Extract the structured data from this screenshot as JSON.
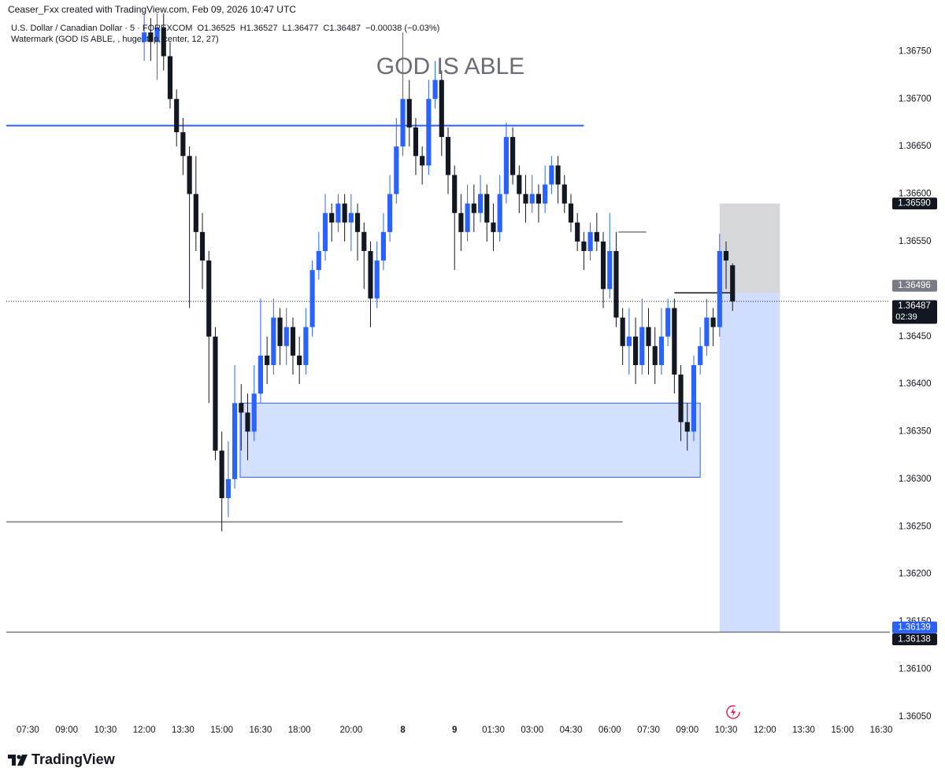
{
  "header": {
    "attribution": "Ceaser_Fxx created with TradingView.com, Feb 09, 2026 10:47 UTC",
    "symbol": "U.S. Dollar / Canadian Dollar · 5 · FOREXCOM",
    "ohlc": [
      "O1.36525",
      "H1.36527",
      "L1.36477",
      "C1.36487",
      "−0.00038 (−0.03%)"
    ],
    "indicator": "Watermark (GOD IS ABLE, , huge, top, center, 12, 27)"
  },
  "watermark": "GOD IS ABLE",
  "footer": {
    "brand": "TradingView"
  },
  "chart_data": {
    "type": "candlestick",
    "up_color": "#2962ff",
    "down_color": "#131722",
    "x": [
      54,
      57,
      60,
      63,
      66,
      69,
      72,
      75,
      78,
      81,
      84,
      87,
      90,
      93,
      96,
      99,
      102,
      105,
      108,
      111,
      114,
      117,
      120,
      123,
      126,
      129,
      132,
      135,
      138,
      141,
      144,
      147,
      150,
      153,
      156,
      159,
      162,
      165,
      168,
      171,
      174,
      177,
      180,
      183,
      186,
      189,
      192,
      195,
      198,
      201,
      204,
      207,
      210,
      213,
      216,
      219,
      222,
      225,
      228,
      231,
      234,
      237,
      240,
      243,
      246,
      249,
      252,
      255,
      258,
      261,
      264,
      267,
      270,
      273,
      276,
      279,
      282,
      285,
      288,
      291,
      294,
      297,
      300,
      303,
      306,
      309,
      312,
      315,
      318,
      321,
      324,
      327
    ],
    "open": [
      1.3676,
      1.3677,
      1.3676,
      1.36775,
      1.36745,
      1.367,
      1.36665,
      1.3664,
      1.366,
      1.3656,
      1.3653,
      1.3645,
      1.3633,
      1.3628,
      1.363,
      1.3638,
      1.3637,
      1.3635,
      1.3639,
      1.3643,
      1.3642,
      1.3647,
      1.3644,
      1.3646,
      1.3643,
      1.3642,
      1.3646,
      1.3652,
      1.3654,
      1.3658,
      1.3657,
      1.3659,
      1.3657,
      1.3658,
      1.3656,
      1.3654,
      1.3649,
      1.3653,
      1.3656,
      1.366,
      1.3665,
      1.367,
      1.3667,
      1.3664,
      1.3663,
      1.367,
      1.3672,
      1.3666,
      1.3662,
      1.3658,
      1.3656,
      1.3659,
      1.3658,
      1.366,
      1.3657,
      1.3656,
      1.366,
      1.3666,
      1.3662,
      1.366,
      1.3659,
      1.366,
      1.3659,
      1.3661,
      1.3663,
      1.3661,
      1.3659,
      1.3657,
      1.3655,
      1.3654,
      1.3656,
      1.3655,
      1.365,
      1.3654,
      1.3647,
      1.3644,
      1.3645,
      1.3642,
      1.3646,
      1.3644,
      1.3642,
      1.3645,
      1.3648,
      1.3641,
      1.3636,
      1.3635,
      1.3642,
      1.3644,
      1.3647,
      1.3646,
      1.3654,
      1.36525
    ],
    "high": [
      1.3679,
      1.36785,
      1.3679,
      1.3679,
      1.3676,
      1.3671,
      1.3668,
      1.3665,
      1.3664,
      1.3658,
      1.3654,
      1.3646,
      1.3635,
      1.3634,
      1.3642,
      1.364,
      1.3639,
      1.3642,
      1.3649,
      1.3645,
      1.3649,
      1.3648,
      1.3648,
      1.3647,
      1.3645,
      1.3648,
      1.3653,
      1.3656,
      1.366,
      1.3659,
      1.366,
      1.366,
      1.366,
      1.3659,
      1.3657,
      1.3655,
      1.3655,
      1.3658,
      1.3662,
      1.3668,
      1.3677,
      1.3672,
      1.3668,
      1.3665,
      1.3672,
      1.3674,
      1.3673,
      1.3667,
      1.3663,
      1.366,
      1.3661,
      1.3661,
      1.3662,
      1.3661,
      1.3659,
      1.3662,
      1.36675,
      1.3667,
      1.3663,
      1.3662,
      1.3662,
      1.3661,
      1.3663,
      1.3664,
      1.3664,
      1.3662,
      1.366,
      1.3658,
      1.3656,
      1.3657,
      1.3658,
      1.3656,
      1.3658,
      1.3656,
      1.3648,
      1.3648,
      1.3647,
      1.3649,
      1.3648,
      1.3646,
      1.3648,
      1.3649,
      1.3649,
      1.3642,
      1.3638,
      1.3643,
      1.3646,
      1.3649,
      1.3648,
      1.36558,
      1.3655,
      1.36527
    ],
    "low": [
      1.3674,
      1.3674,
      1.3672,
      1.3673,
      1.3669,
      1.3665,
      1.3662,
      1.3648,
      1.3654,
      1.365,
      1.3638,
      1.3632,
      1.36245,
      1.3626,
      1.3629,
      1.3633,
      1.3632,
      1.3634,
      1.3638,
      1.364,
      1.3641,
      1.3642,
      1.3642,
      1.3641,
      1.364,
      1.3641,
      1.3645,
      1.3651,
      1.3653,
      1.3655,
      1.3656,
      1.3655,
      1.3654,
      1.3653,
      1.365,
      1.3646,
      1.3648,
      1.3652,
      1.3655,
      1.3659,
      1.3664,
      1.3665,
      1.3662,
      1.3661,
      1.3662,
      1.3669,
      1.3664,
      1.366,
      1.3652,
      1.3654,
      1.3655,
      1.3656,
      1.3657,
      1.3655,
      1.3654,
      1.3655,
      1.3659,
      1.3661,
      1.3658,
      1.3657,
      1.3658,
      1.3657,
      1.3658,
      1.366,
      1.3659,
      1.3658,
      1.3656,
      1.3654,
      1.3652,
      1.3653,
      1.3654,
      1.3648,
      1.3649,
      1.3646,
      1.3642,
      1.3641,
      1.364,
      1.3641,
      1.3641,
      1.364,
      1.3641,
      1.3644,
      1.3639,
      1.3634,
      1.3633,
      1.3634,
      1.3641,
      1.3643,
      1.3644,
      1.3645,
      1.365,
      1.36477
    ],
    "close": [
      1.3677,
      1.3676,
      1.36775,
      1.36745,
      1.367,
      1.36665,
      1.3664,
      1.366,
      1.3656,
      1.3653,
      1.3645,
      1.3633,
      1.3628,
      1.363,
      1.3638,
      1.3637,
      1.3635,
      1.3639,
      1.3643,
      1.3642,
      1.3647,
      1.3644,
      1.3646,
      1.3643,
      1.3642,
      1.3646,
      1.3652,
      1.3654,
      1.3658,
      1.3657,
      1.3659,
      1.3657,
      1.3658,
      1.3656,
      1.3654,
      1.3649,
      1.3653,
      1.3656,
      1.366,
      1.3665,
      1.367,
      1.3667,
      1.3664,
      1.3663,
      1.367,
      1.3672,
      1.3666,
      1.3662,
      1.3658,
      1.3656,
      1.3659,
      1.3658,
      1.366,
      1.3657,
      1.3656,
      1.366,
      1.3666,
      1.3662,
      1.366,
      1.3659,
      1.366,
      1.3659,
      1.3661,
      1.3663,
      1.3661,
      1.3659,
      1.3657,
      1.3655,
      1.3654,
      1.3656,
      1.3655,
      1.365,
      1.3654,
      1.3647,
      1.3644,
      1.3645,
      1.3642,
      1.3646,
      1.3644,
      1.3642,
      1.3645,
      1.3648,
      1.3641,
      1.3636,
      1.3635,
      1.3642,
      1.3644,
      1.3647,
      1.3646,
      1.3654,
      1.3653,
      1.36487
    ],
    "xlim": [
      -10,
      400
    ],
    "xticks": [
      {
        "value": 0,
        "label": "07:30"
      },
      {
        "value": 18,
        "label": "09:00"
      },
      {
        "value": 36,
        "label": "10:30"
      },
      {
        "value": 54,
        "label": "12:00"
      },
      {
        "value": 72,
        "label": "13:30"
      },
      {
        "value": 90,
        "label": "15:00"
      },
      {
        "value": 108,
        "label": "16:30"
      },
      {
        "value": 126,
        "label": "18:00"
      },
      {
        "value": 150,
        "label": "20:00"
      },
      {
        "value": 174,
        "label": "8"
      },
      {
        "value": 198,
        "label": "9"
      },
      {
        "value": 216,
        "label": "01:30"
      },
      {
        "value": 234,
        "label": "03:00"
      },
      {
        "value": 252,
        "label": "04:30"
      },
      {
        "value": 270,
        "label": "06:00"
      },
      {
        "value": 288,
        "label": "07:30"
      },
      {
        "value": 306,
        "label": "09:00"
      },
      {
        "value": 324,
        "label": "10:30"
      },
      {
        "value": 342,
        "label": "12:00"
      },
      {
        "value": 360,
        "label": "13:30"
      },
      {
        "value": 378,
        "label": "15:00"
      },
      {
        "value": 396,
        "label": "16:30"
      }
    ],
    "ylim": [
      1.3603,
      1.368
    ],
    "yticks": [
      {
        "value": 1.3605,
        "label": "1.36050"
      },
      {
        "value": 1.361,
        "label": "1.36100"
      },
      {
        "value": 1.3615,
        "label": "1.36150"
      },
      {
        "value": 1.362,
        "label": "1.36200"
      },
      {
        "value": 1.3625,
        "label": "1.36250"
      },
      {
        "value": 1.363,
        "label": "1.36300"
      },
      {
        "value": 1.3635,
        "label": "1.36350"
      },
      {
        "value": 1.364,
        "label": "1.36400"
      },
      {
        "value": 1.3645,
        "label": "1.36450"
      },
      {
        "value": 1.365,
        "label": "1.36500"
      },
      {
        "value": 1.3655,
        "label": "1.36550"
      },
      {
        "value": 1.366,
        "label": "1.36600"
      },
      {
        "value": 1.3665,
        "label": "1.36650"
      },
      {
        "value": 1.367,
        "label": "1.36700"
      },
      {
        "value": 1.3675,
        "label": "1.36750"
      }
    ],
    "levels": [
      {
        "price": 1.36672,
        "x": [
          -10,
          258
        ],
        "color": "#2962ff"
      },
      {
        "price": 1.36255,
        "x": [
          -10,
          276
        ],
        "color": "#787b86"
      },
      {
        "price": 1.36139,
        "x": [
          -10,
          400
        ],
        "color": "#787b86"
      },
      {
        "price": 1.3656,
        "x": [
          274,
          287
        ],
        "color": "#787b86"
      },
      {
        "price": 1.36496,
        "x": [
          300,
          327
        ],
        "color": "#131722"
      }
    ],
    "zones": [
      {
        "low": 1.36302,
        "high": 1.3638,
        "x": [
          98.5,
          312
        ],
        "color": "#2962ff"
      }
    ],
    "position": {
      "stop": 1.3659,
      "entry": 1.36496,
      "target": 1.36139,
      "x": [
        321,
        349
      ],
      "stop_color": "#787b86",
      "target_color": "#2962ff"
    },
    "last_price": 1.36487,
    "price_tags": [
      {
        "value": 1.3659,
        "label": "1.36590",
        "color": "#131722"
      },
      {
        "value": 1.36496,
        "label": "1.36496",
        "color": "#787b86"
      },
      {
        "value": 1.36487,
        "label": "1.36487",
        "color": "#131722",
        "countdown": "02:39"
      },
      {
        "value": 1.36139,
        "label": "1.36139",
        "color": "#2962ff"
      },
      {
        "value": 1.36138,
        "label": "1.36138",
        "color": "#131722"
      }
    ]
  }
}
